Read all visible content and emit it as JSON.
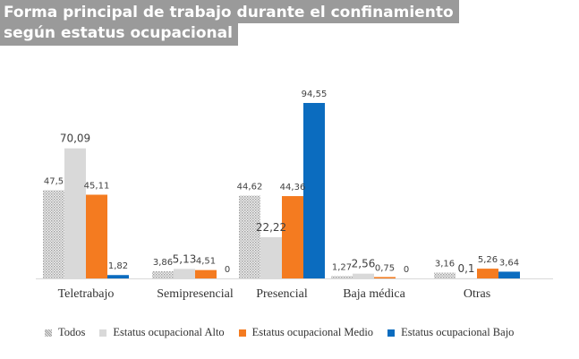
{
  "chart_data": {
    "type": "bar",
    "title": "Forma principal de trabajo durante el confinamiento según estatus ocupacional",
    "title_lines": [
      "Forma principal de trabajo durante el confinamiento",
      "según estatus ocupacional"
    ],
    "xlabel": "",
    "ylabel": "",
    "ylim": [
      0,
      100
    ],
    "grid": false,
    "legend_position": "bottom",
    "categories": [
      "Teletrabajo",
      "Semipresencial",
      "Presencial",
      "Baja médica",
      "Otras"
    ],
    "series": [
      {
        "name": "Todos",
        "color": "#c8c8c8",
        "pattern": "dotted",
        "values": [
          47.5,
          3.86,
          44.62,
          1.27,
          3.16
        ],
        "labels": [
          "47,5",
          "3,86",
          "44,62",
          "1,27",
          "3,16"
        ]
      },
      {
        "name": "Estatus ocupacional Alto",
        "color": "#d9d9d9",
        "values": [
          70.09,
          5.13,
          22.22,
          2.56,
          0.1
        ],
        "labels": [
          "70,09",
          "5,13",
          "22,22",
          "2,56",
          "0,1"
        ]
      },
      {
        "name": "Estatus ocupacional Medio",
        "color": "#f47b20",
        "values": [
          45.11,
          4.51,
          44.36,
          0.75,
          5.26
        ],
        "labels": [
          "45,11",
          "4,51",
          "44,36",
          "0,75",
          "5,26"
        ]
      },
      {
        "name": "Estatus ocupacional Bajo",
        "color": "#0b6cbf",
        "values": [
          1.82,
          0,
          94.55,
          0,
          3.64
        ],
        "labels": [
          "1,82",
          "0",
          "94,55",
          "0",
          "3,64"
        ]
      }
    ]
  }
}
